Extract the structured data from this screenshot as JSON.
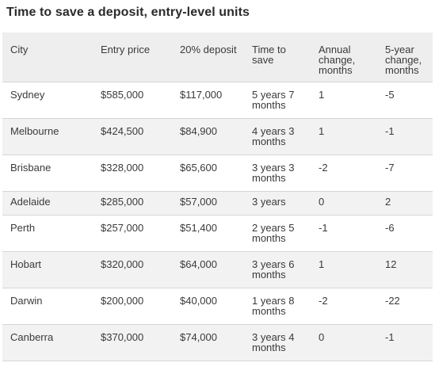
{
  "title": "Time to save a deposit, entry-level units",
  "columns": {
    "city": "City",
    "entry_price": "Entry price",
    "deposit": "20% deposit",
    "time_line1": "Time to",
    "time_line2": "save",
    "annual_line1": "Annual",
    "annual_line2": "change,",
    "annual_line3": "months",
    "five_line1": "5-year",
    "five_line2": "change,",
    "five_line3": "months"
  },
  "rows": [
    {
      "city": "Sydney",
      "entry_price": "$585,000",
      "deposit": "$117,000",
      "time_a": "5 years 7",
      "time_b": "months",
      "annual": "1",
      "five_year": "-5"
    },
    {
      "city": "Melbourne",
      "entry_price": "$424,500",
      "deposit": "$84,900",
      "time_a": "4 years 3",
      "time_b": "months",
      "annual": "1",
      "five_year": "-1"
    },
    {
      "city": "Brisbane",
      "entry_price": "$328,000",
      "deposit": "$65,600",
      "time_a": "3 years 3",
      "time_b": "months",
      "annual": "-2",
      "five_year": "-7"
    },
    {
      "city": "Adelaide",
      "entry_price": "$285,000",
      "deposit": "$57,000",
      "time_a": "3 years",
      "time_b": "",
      "annual": "0",
      "five_year": "2"
    },
    {
      "city": "Perth",
      "entry_price": "$257,000",
      "deposit": "$51,400",
      "time_a": "2 years 5",
      "time_b": "months",
      "annual": "-1",
      "five_year": "-6"
    },
    {
      "city": "Hobart",
      "entry_price": "$320,000",
      "deposit": "$64,000",
      "time_a": "3 years 6",
      "time_b": "months",
      "annual": "1",
      "five_year": "12"
    },
    {
      "city": "Darwin",
      "entry_price": "$200,000",
      "deposit": "$40,000",
      "time_a": "1 years 8",
      "time_b": "months",
      "annual": "-2",
      "five_year": "-22"
    },
    {
      "city": "Canberra",
      "entry_price": "$370,000",
      "deposit": "$74,000",
      "time_a": "3 years 4",
      "time_b": "months",
      "annual": "0",
      "five_year": "-1"
    }
  ]
}
